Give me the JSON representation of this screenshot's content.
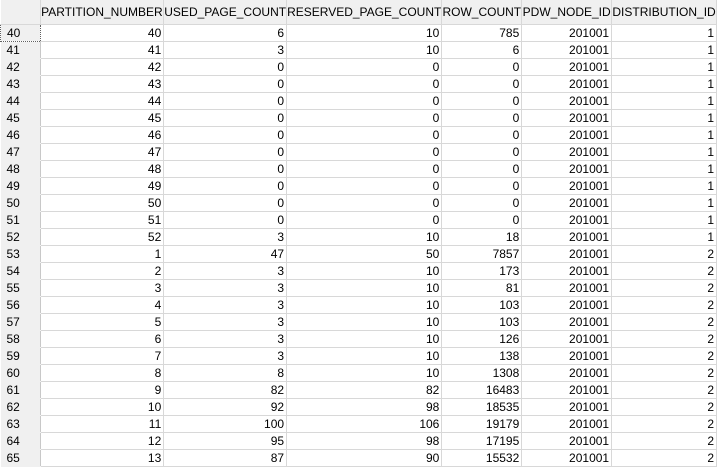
{
  "columns": [
    "PARTITION_NUMBER",
    "USED_PAGE_COUNT",
    "RESERVED_PAGE_COUNT",
    "ROW_COUNT",
    "PDW_NODE_ID",
    "DISTRIBUTION_ID"
  ],
  "rows": [
    {
      "n": "40",
      "cells": [
        "40",
        "6",
        "10",
        "785",
        "201001",
        "1"
      ]
    },
    {
      "n": "41",
      "cells": [
        "41",
        "3",
        "10",
        "6",
        "201001",
        "1"
      ]
    },
    {
      "n": "42",
      "cells": [
        "42",
        "0",
        "0",
        "0",
        "201001",
        "1"
      ]
    },
    {
      "n": "43",
      "cells": [
        "43",
        "0",
        "0",
        "0",
        "201001",
        "1"
      ]
    },
    {
      "n": "44",
      "cells": [
        "44",
        "0",
        "0",
        "0",
        "201001",
        "1"
      ]
    },
    {
      "n": "45",
      "cells": [
        "45",
        "0",
        "0",
        "0",
        "201001",
        "1"
      ]
    },
    {
      "n": "46",
      "cells": [
        "46",
        "0",
        "0",
        "0",
        "201001",
        "1"
      ]
    },
    {
      "n": "47",
      "cells": [
        "47",
        "0",
        "0",
        "0",
        "201001",
        "1"
      ]
    },
    {
      "n": "48",
      "cells": [
        "48",
        "0",
        "0",
        "0",
        "201001",
        "1"
      ]
    },
    {
      "n": "49",
      "cells": [
        "49",
        "0",
        "0",
        "0",
        "201001",
        "1"
      ]
    },
    {
      "n": "50",
      "cells": [
        "50",
        "0",
        "0",
        "0",
        "201001",
        "1"
      ]
    },
    {
      "n": "51",
      "cells": [
        "51",
        "0",
        "0",
        "0",
        "201001",
        "1"
      ]
    },
    {
      "n": "52",
      "cells": [
        "52",
        "3",
        "10",
        "18",
        "201001",
        "1"
      ]
    },
    {
      "n": "53",
      "cells": [
        "1",
        "47",
        "50",
        "7857",
        "201001",
        "2"
      ]
    },
    {
      "n": "54",
      "cells": [
        "2",
        "3",
        "10",
        "173",
        "201001",
        "2"
      ]
    },
    {
      "n": "55",
      "cells": [
        "3",
        "3",
        "10",
        "81",
        "201001",
        "2"
      ]
    },
    {
      "n": "56",
      "cells": [
        "4",
        "3",
        "10",
        "103",
        "201001",
        "2"
      ]
    },
    {
      "n": "57",
      "cells": [
        "5",
        "3",
        "10",
        "103",
        "201001",
        "2"
      ]
    },
    {
      "n": "58",
      "cells": [
        "6",
        "3",
        "10",
        "126",
        "201001",
        "2"
      ]
    },
    {
      "n": "59",
      "cells": [
        "7",
        "3",
        "10",
        "138",
        "201001",
        "2"
      ]
    },
    {
      "n": "60",
      "cells": [
        "8",
        "8",
        "10",
        "1308",
        "201001",
        "2"
      ]
    },
    {
      "n": "61",
      "cells": [
        "9",
        "82",
        "82",
        "16483",
        "201001",
        "2"
      ]
    },
    {
      "n": "62",
      "cells": [
        "10",
        "92",
        "98",
        "18535",
        "201001",
        "2"
      ]
    },
    {
      "n": "63",
      "cells": [
        "11",
        "100",
        "106",
        "19179",
        "201001",
        "2"
      ]
    },
    {
      "n": "64",
      "cells": [
        "12",
        "95",
        "98",
        "17195",
        "201001",
        "2"
      ]
    },
    {
      "n": "65",
      "cells": [
        "13",
        "87",
        "90",
        "15532",
        "201001",
        "2"
      ]
    }
  ]
}
